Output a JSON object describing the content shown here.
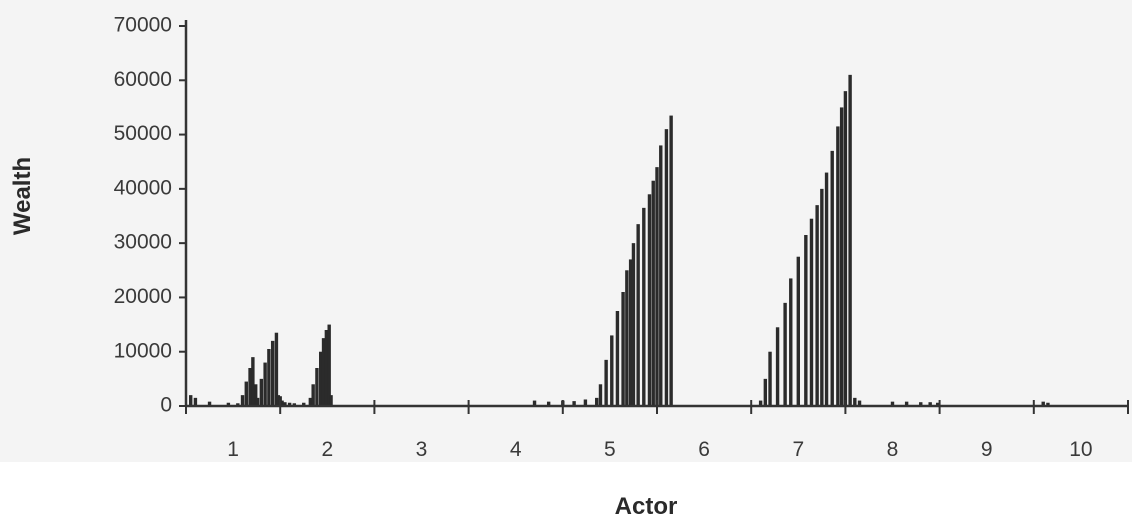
{
  "chart_data": {
    "type": "bar",
    "xlabel": "Actor",
    "ylabel": "Wealth",
    "ylim": [
      0,
      70000
    ],
    "yticks": [
      "0",
      "10000",
      "20000",
      "30000",
      "40000",
      "50000",
      "60000",
      "70000"
    ],
    "xlim": [
      0.5,
      10.5
    ],
    "xticks": [
      "1",
      "2",
      "3",
      "4",
      "5",
      "6",
      "7",
      "8",
      "9",
      "10"
    ],
    "grid": false,
    "legend": "none",
    "bar_color": "#2b2b2b",
    "series": [
      {
        "x": [
          0.55,
          0.6,
          0.75,
          0.95,
          1.05,
          1.1,
          1.14,
          1.18,
          1.21,
          1.24,
          1.26,
          1.3,
          1.34,
          1.38,
          1.42,
          1.46,
          1.48,
          1.5,
          1.52,
          1.55,
          1.6,
          1.65,
          1.75,
          1.82,
          1.85,
          1.89,
          1.93,
          1.96,
          1.99,
          2.02,
          2.04,
          4.2,
          4.35,
          4.5,
          4.62,
          4.74,
          4.86,
          4.9,
          4.96,
          5.02,
          5.08,
          5.14,
          5.18,
          5.22,
          5.25,
          5.3,
          5.36,
          5.42,
          5.46,
          5.5,
          5.54,
          5.6,
          5.65,
          6.6,
          6.65,
          6.7,
          6.78,
          6.86,
          6.92,
          7.0,
          7.08,
          7.14,
          7.2,
          7.25,
          7.3,
          7.36,
          7.42,
          7.46,
          7.5,
          7.55,
          7.6,
          7.65,
          8.0,
          8.15,
          8.3,
          8.4,
          8.48,
          9.6,
          9.65
        ],
        "y": [
          2000,
          1500,
          800,
          600,
          500,
          2000,
          4500,
          7000,
          9000,
          4000,
          1500,
          5000,
          8000,
          10500,
          12000,
          13500,
          2000,
          1800,
          1000,
          700,
          600,
          500,
          600,
          1500,
          4000,
          7000,
          10000,
          12500,
          14000,
          15000,
          2000,
          1000,
          800,
          1000,
          900,
          1200,
          1500,
          4000,
          8500,
          13000,
          17500,
          21000,
          25000,
          27000,
          30000,
          33500,
          36500,
          39000,
          41500,
          44000,
          48000,
          51000,
          53500,
          1000,
          5000,
          10000,
          14500,
          19000,
          23500,
          27500,
          31500,
          34500,
          37000,
          40000,
          43000,
          47000,
          51500,
          55000,
          58000,
          61000,
          1500,
          1000,
          800,
          800,
          700,
          700,
          600,
          800,
          600
        ]
      }
    ]
  }
}
